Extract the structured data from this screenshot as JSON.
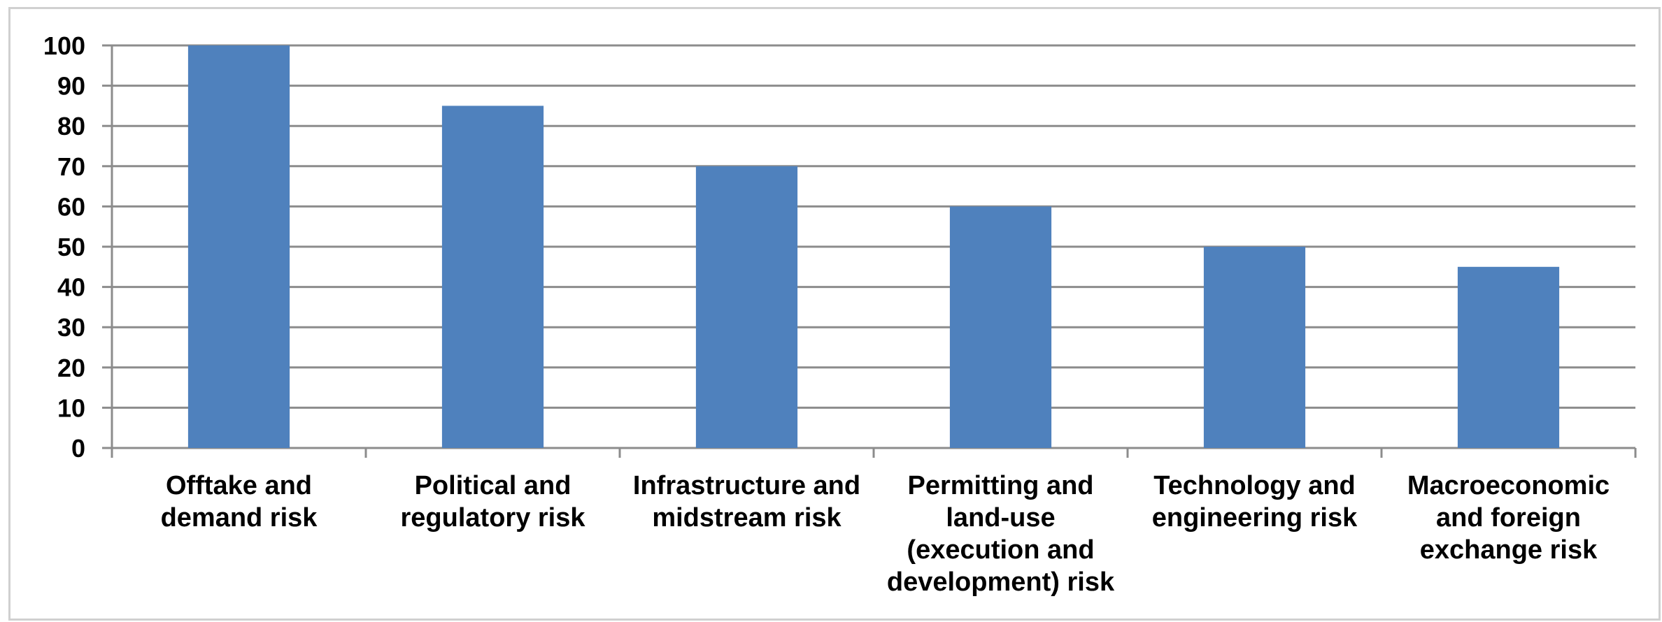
{
  "chart_data": {
    "type": "bar",
    "title": "",
    "xlabel": "",
    "ylabel": "",
    "ylim": [
      0,
      100
    ],
    "yticks": [
      0,
      10,
      20,
      30,
      40,
      50,
      60,
      70,
      80,
      90,
      100
    ],
    "grid": true,
    "legend": "none",
    "bar_color": "#4f81bd",
    "categories": [
      [
        "Offtake and",
        "demand risk"
      ],
      [
        "Political and",
        "regulatory risk"
      ],
      [
        "Infrastructure and",
        "midstream risk"
      ],
      [
        "Permitting and",
        "land-use",
        "(execution and",
        "development) risk"
      ],
      [
        "Technology and",
        "engineering risk"
      ],
      [
        "Macroeconomic",
        "and foreign",
        "exchange risk"
      ]
    ],
    "values": [
      100,
      85,
      70,
      60,
      50,
      45
    ]
  }
}
